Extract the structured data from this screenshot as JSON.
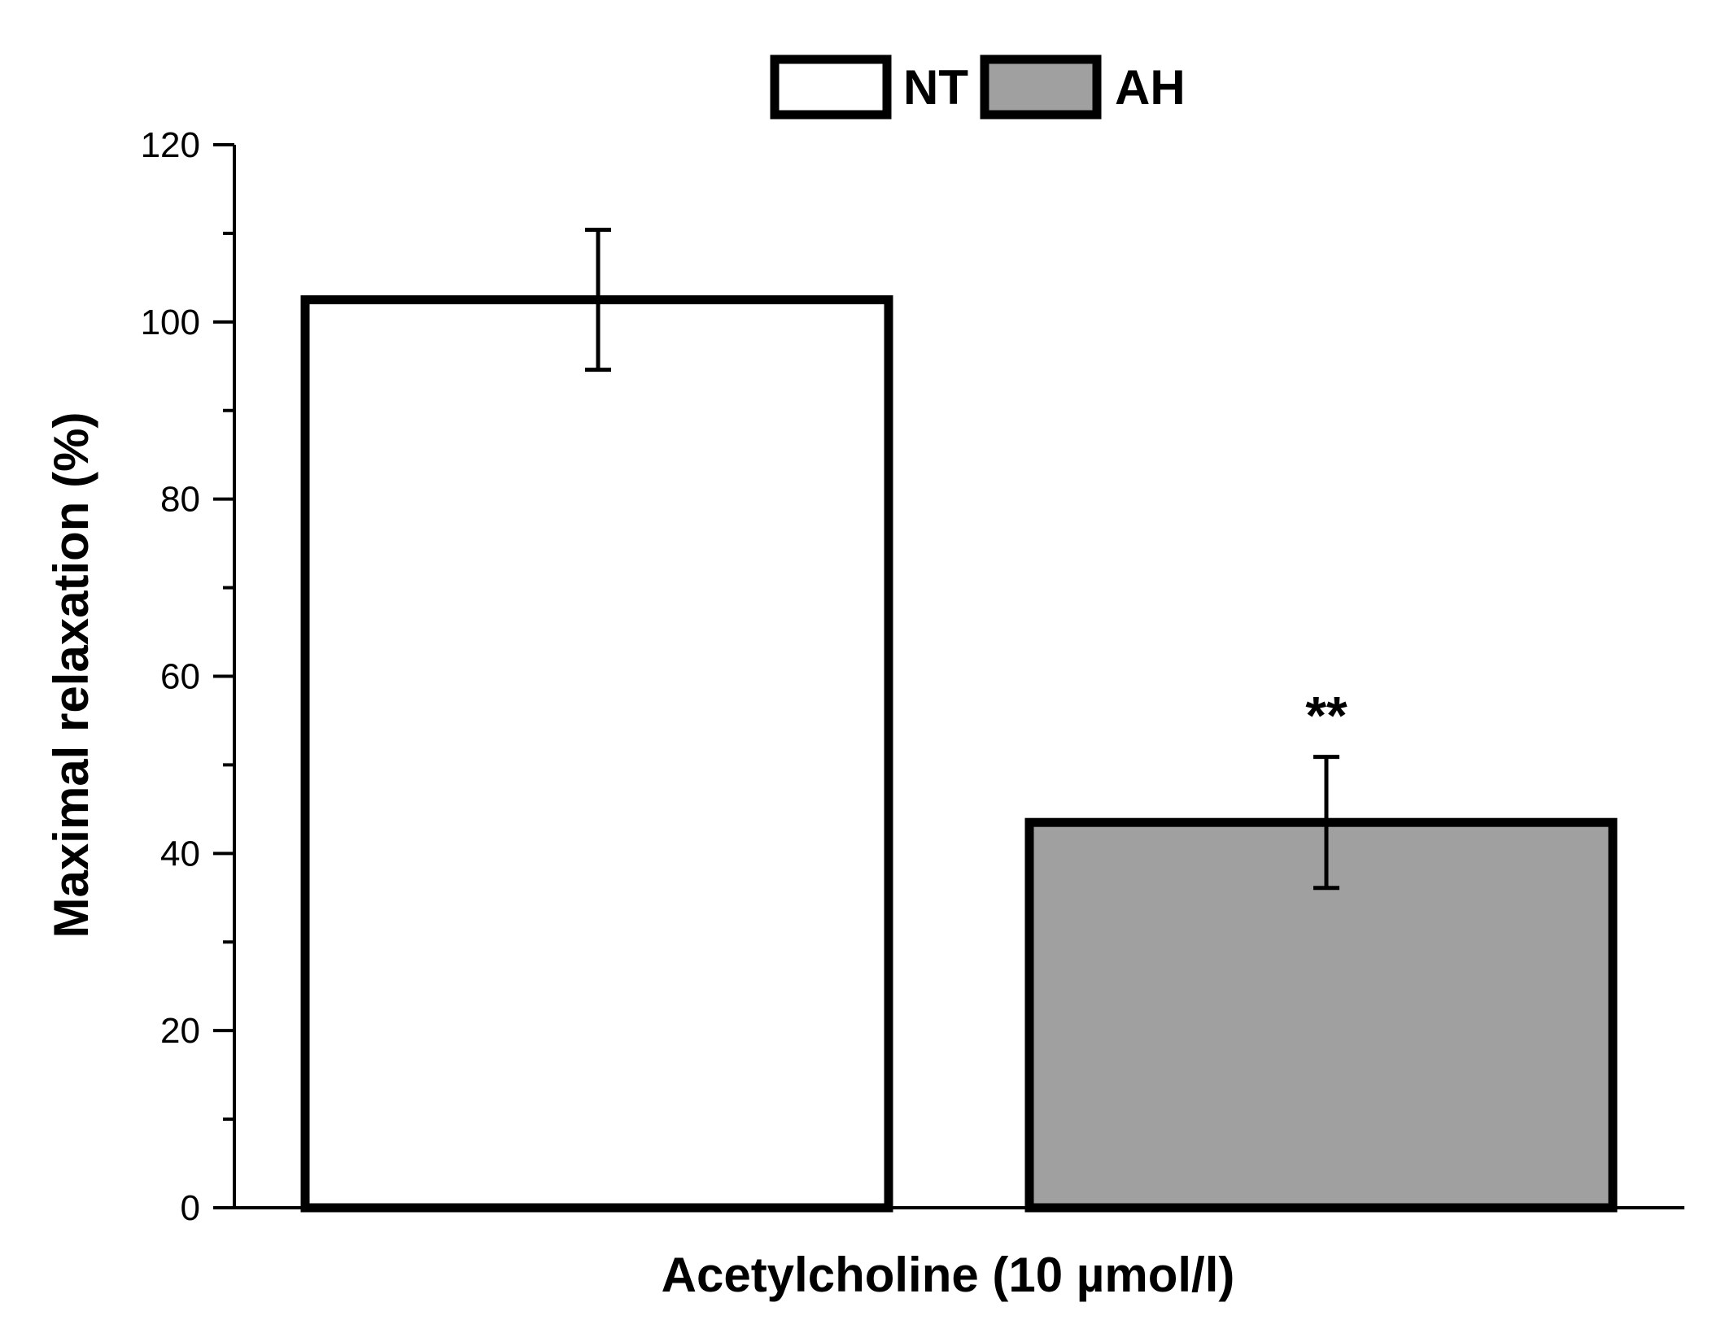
{
  "chart_data": {
    "type": "bar",
    "xlabel": "Acetylcholine (10 µmol/l)",
    "ylabel": "Maximal relaxation (%)",
    "ylim": [
      0,
      120
    ],
    "yticks": [
      0,
      20,
      40,
      60,
      80,
      100,
      120
    ],
    "y_minor_step": 10,
    "grid": false,
    "legend_position": "top-center",
    "series": [
      {
        "name": "NT",
        "value": 102.5,
        "error": 7.9,
        "color": "#ffffff"
      },
      {
        "name": "AH",
        "value": 43.5,
        "error": 7.4,
        "color": "#a0a0a0",
        "annotation": "**"
      }
    ]
  }
}
